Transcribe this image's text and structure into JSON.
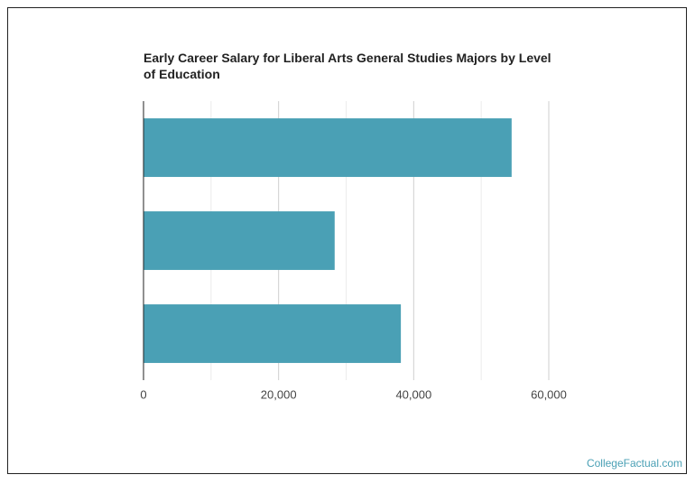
{
  "chart_data": {
    "type": "bar",
    "orientation": "horizontal",
    "title": "Early Career Salary for Liberal Arts General Studies Majors by Level of Education",
    "source": "CollegeFactual.com",
    "categories": [
      null,
      null,
      null
    ],
    "values": [
      54500,
      28300,
      38100
    ],
    "color": "#4aa0b5",
    "xlim": [
      0,
      60000
    ],
    "xticks": [
      0,
      {
        "value": 20000,
        "label": "20,000"
      },
      {
        "value": 40000,
        "label": "40,000"
      },
      {
        "value": 60000,
        "label": "60,000"
      }
    ],
    "minor_xticks": [
      10000,
      30000,
      50000
    ],
    "grid": true
  }
}
